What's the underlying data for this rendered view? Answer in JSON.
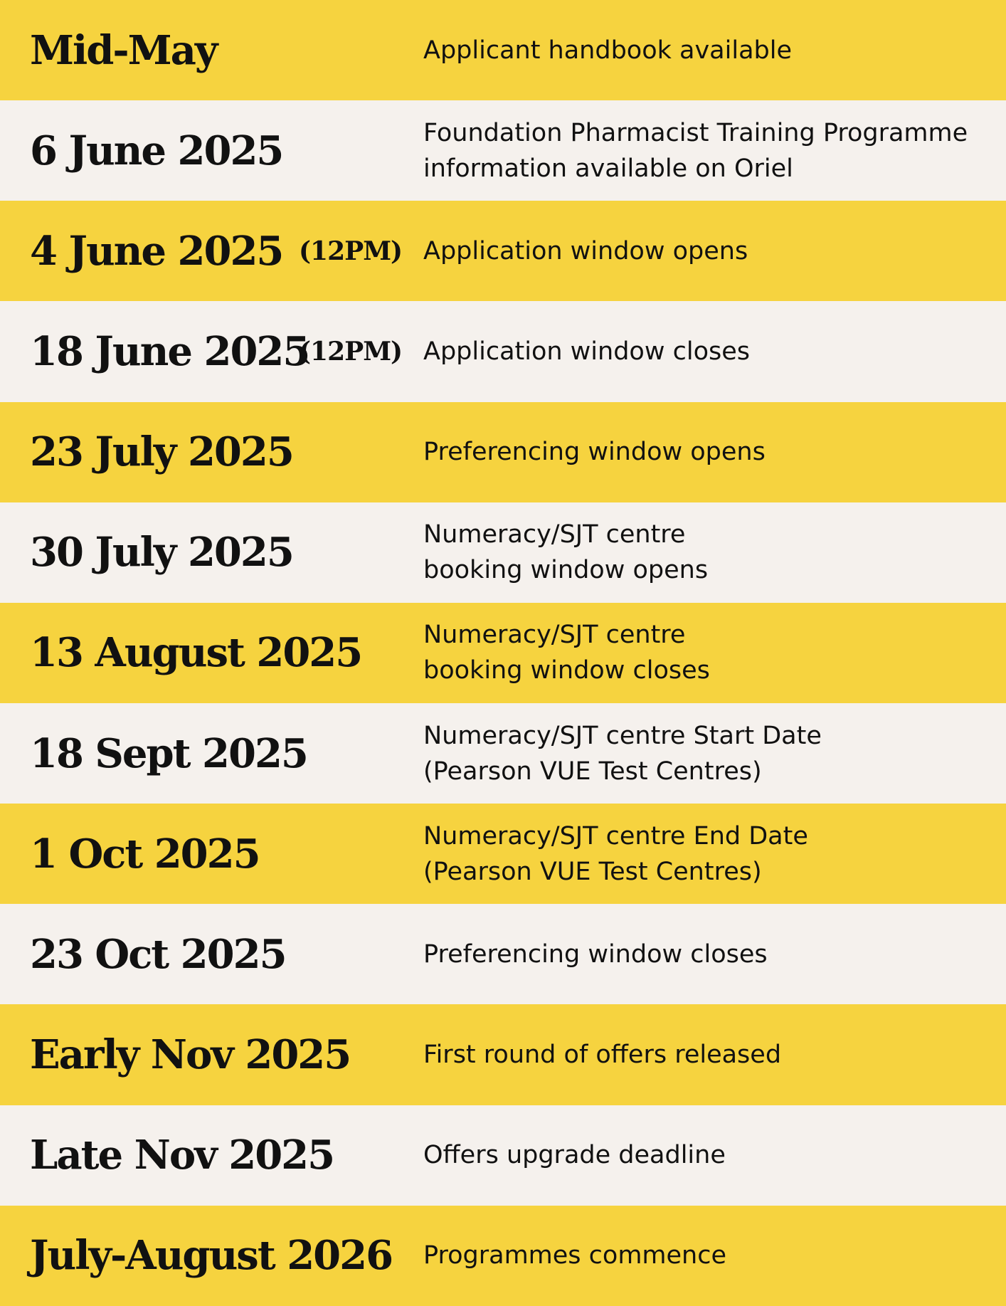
{
  "colors": {
    "yellow": "#F6D33F",
    "offwhite": "#F5F1ED"
  },
  "rows": [
    {
      "date": "Mid-May",
      "time": "",
      "desc": [
        "Applicant handbook available"
      ]
    },
    {
      "date": "6 June 2025",
      "time": "",
      "desc": [
        "Foundation Pharmacist Training Programme",
        "information available on Oriel"
      ]
    },
    {
      "date": "4 June 2025",
      "time": "(12PM)",
      "desc": [
        "Application window opens"
      ]
    },
    {
      "date": "18 June 2025",
      "time": "(12PM)",
      "desc": [
        "Application window closes"
      ]
    },
    {
      "date": "23 July 2025",
      "time": "",
      "desc": [
        "Preferencing window opens"
      ]
    },
    {
      "date": "30 July 2025",
      "time": "",
      "desc": [
        "Numeracy/SJT centre",
        "booking window opens"
      ]
    },
    {
      "date": "13 August 2025",
      "time": "",
      "desc": [
        "Numeracy/SJT centre",
        "booking window closes"
      ]
    },
    {
      "date": "18 Sept 2025",
      "time": "",
      "desc": [
        "Numeracy/SJT centre Start Date",
        "(Pearson VUE Test Centres)"
      ]
    },
    {
      "date": "1 Oct 2025",
      "time": "",
      "desc": [
        "Numeracy/SJT centre End Date",
        "(Pearson VUE Test Centres)"
      ]
    },
    {
      "date": "23 Oct 2025",
      "time": "",
      "desc": [
        "Preferencing window closes"
      ]
    },
    {
      "date": "Early Nov 2025",
      "time": "",
      "desc": [
        "First round of offers released"
      ]
    },
    {
      "date": "Late Nov 2025",
      "time": "",
      "desc": [
        "Offers upgrade deadline"
      ]
    },
    {
      "date": "July-August 2026",
      "time": "",
      "desc": [
        "Programmes commence"
      ]
    }
  ]
}
